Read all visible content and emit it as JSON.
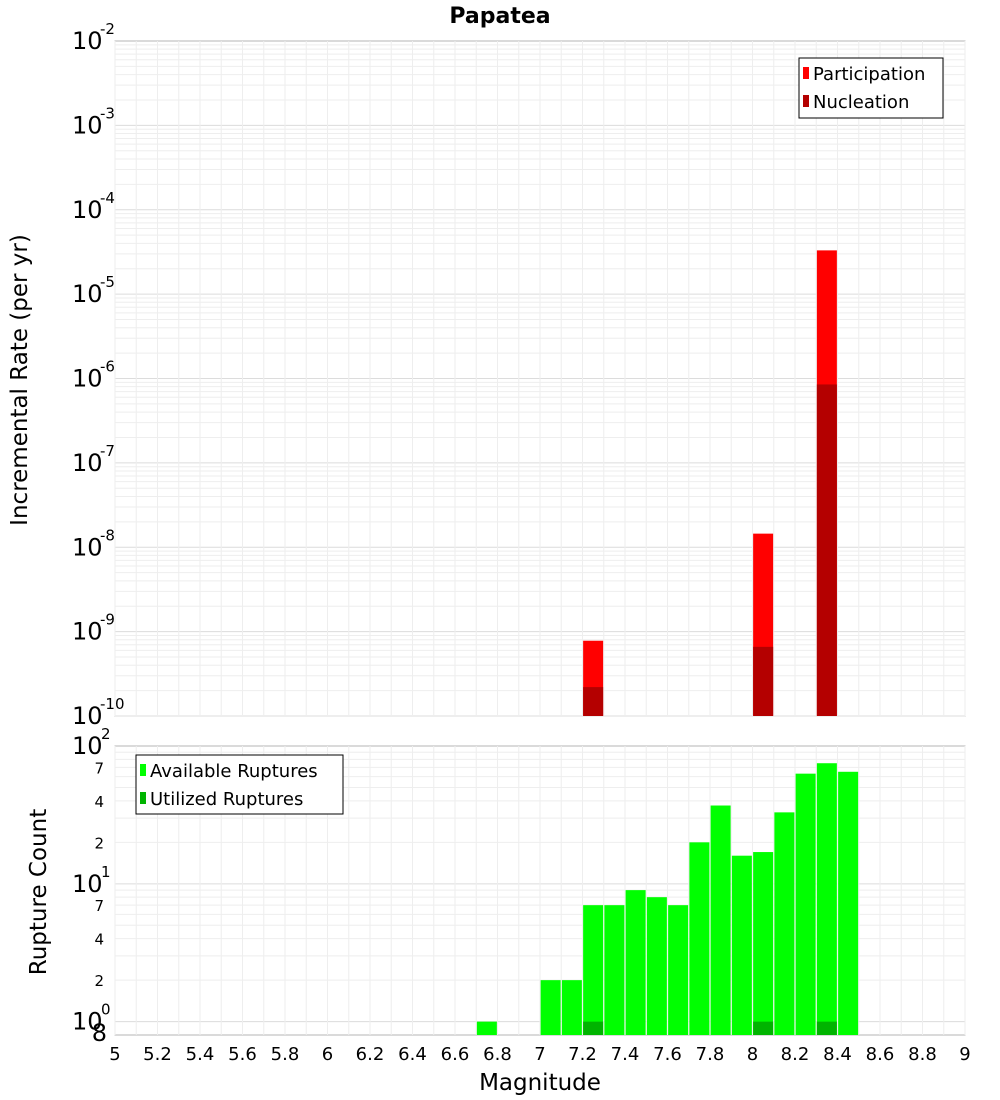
{
  "chart_data": [
    {
      "type": "bar",
      "title": "Papatea",
      "ylabel": "Incremental Rate (per yr)",
      "yscale": "log",
      "ylim": [
        1e-10,
        0.01
      ],
      "xlim": [
        5,
        9
      ],
      "grid": true,
      "legend_position": "top-right",
      "y_tick_labels": [
        {
          "mantissa": "10",
          "exponent": "-10"
        },
        {
          "mantissa": "10",
          "exponent": "-9"
        },
        {
          "mantissa": "10",
          "exponent": "-8"
        },
        {
          "mantissa": "10",
          "exponent": "-7"
        },
        {
          "mantissa": "10",
          "exponent": "-6"
        },
        {
          "mantissa": "10",
          "exponent": "-5"
        },
        {
          "mantissa": "10",
          "exponent": "-4"
        },
        {
          "mantissa": "10",
          "exponent": "-3"
        },
        {
          "mantissa": "10",
          "exponent": "-2"
        }
      ],
      "series": [
        {
          "name": "Participation",
          "color": "#ff0000",
          "x": [
            7.25,
            8.05,
            8.35
          ],
          "values": [
            7.8e-10,
            1.45e-08,
            3.3e-05
          ]
        },
        {
          "name": "Nucleation",
          "color": "#b40000",
          "x": [
            7.25,
            8.05,
            8.35
          ],
          "values": [
            2.2e-10,
            6.6e-10,
            8.5e-07
          ]
        }
      ]
    },
    {
      "type": "bar",
      "ylabel": "Rupture Count",
      "xlabel": "Magnitude",
      "yscale": "log",
      "ylim": [
        0.8,
        100
      ],
      "xlim": [
        5,
        9
      ],
      "grid": true,
      "legend_position": "top-left",
      "x_tick_labels": [
        "5",
        "5.2",
        "5.4",
        "5.6",
        "5.8",
        "6",
        "6.2",
        "6.4",
        "6.6",
        "6.8",
        "7",
        "7.2",
        "7.4",
        "7.6",
        "7.8",
        "8",
        "8.2",
        "8.4",
        "8.6",
        "8.8",
        "9"
      ],
      "y_tick_labels": [
        {
          "mantissa": "10",
          "exponent": "0"
        },
        {
          "mantissa": "10",
          "exponent": "1"
        },
        {
          "mantissa": "10",
          "exponent": "2"
        }
      ],
      "y_minor_tick_labels": [
        "8",
        "2",
        "4",
        "7",
        "2",
        "4",
        "7"
      ],
      "series": [
        {
          "name": "Available Ruptures",
          "color": "#00ff00",
          "x": [
            6.75,
            7.05,
            7.15,
            7.25,
            7.35,
            7.45,
            7.55,
            7.65,
            7.75,
            7.85,
            7.95,
            8.05,
            8.15,
            8.25,
            8.35,
            8.45
          ],
          "values": [
            1,
            2,
            2,
            7,
            7,
            9,
            8,
            7,
            20,
            37,
            16,
            17,
            33,
            63,
            75,
            65
          ]
        },
        {
          "name": "Utilized Ruptures",
          "color": "#00b400",
          "x": [
            7.25,
            8.05,
            8.35
          ],
          "values": [
            1,
            1,
            1
          ]
        }
      ]
    }
  ]
}
